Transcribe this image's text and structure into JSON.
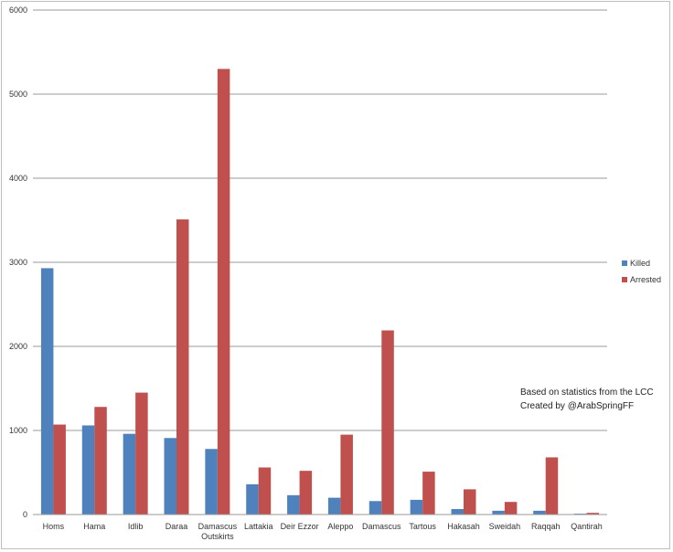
{
  "chart_data": {
    "type": "bar",
    "categories": [
      "Homs",
      "Hama",
      "Idlib",
      "Daraa",
      "Damascus Outskirts",
      "Lattakia",
      "Deir Ezzor",
      "Aleppo",
      "Damascus",
      "Tartous",
      "Hakasah",
      "Sweidah",
      "Raqqah",
      "Qantirah"
    ],
    "series": [
      {
        "name": "Killed",
        "color": "#4f81bd",
        "values": [
          2930,
          1060,
          960,
          910,
          780,
          360,
          230,
          200,
          160,
          175,
          65,
          45,
          45,
          10
        ]
      },
      {
        "name": "Arrested",
        "color": "#c0504d",
        "values": [
          1070,
          1280,
          1450,
          3510,
          5300,
          560,
          520,
          950,
          2190,
          510,
          300,
          150,
          680,
          20
        ]
      }
    ],
    "ylim": [
      0,
      6000
    ],
    "yticks": [
      "0",
      "1000",
      "2000",
      "3000",
      "4000",
      "5000",
      "6000"
    ],
    "grid": true,
    "legend_position": "right",
    "annotations": [
      "Based on statistics from the LCC",
      "Created by @ArabSpringFF"
    ]
  }
}
